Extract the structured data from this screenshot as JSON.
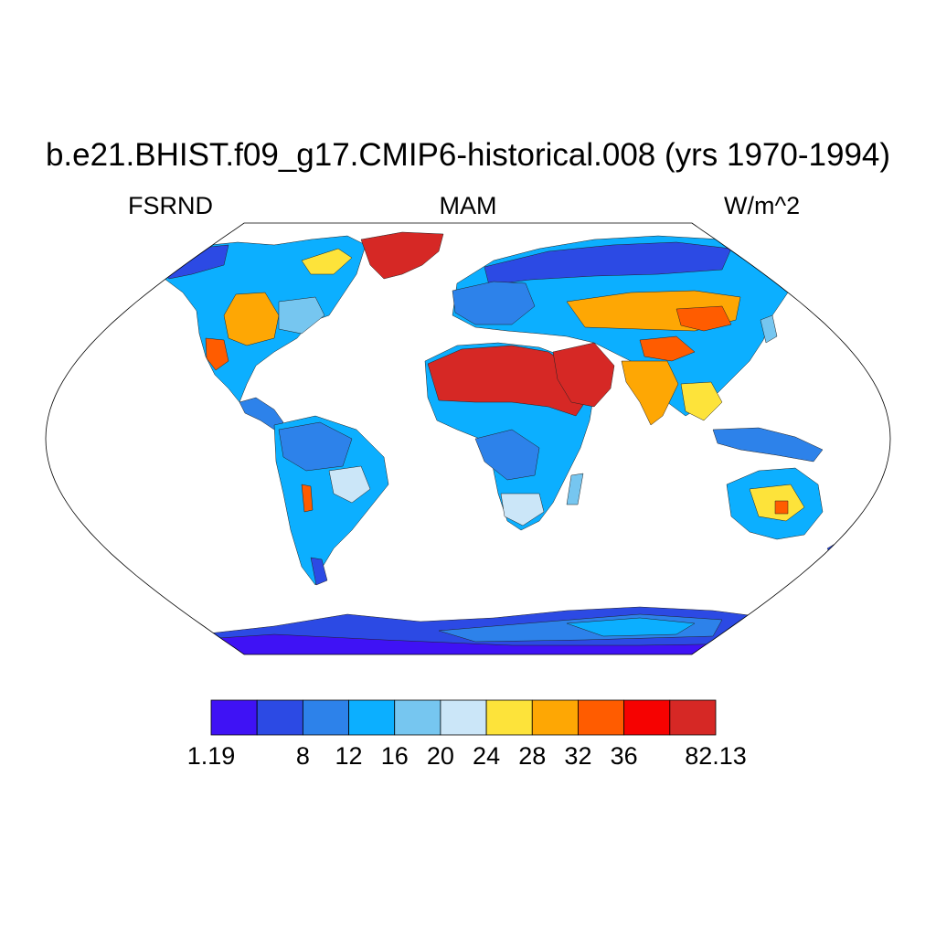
{
  "title": "b.e21.BHIST.f09_g17.CMIP6-historical.008 (yrs 1970-1994)",
  "left_label": "FSRND",
  "center_label": "MAM",
  "right_label": "W/m^2",
  "colorbar": {
    "colors": [
      "#3f12f5",
      "#2c4ae4",
      "#2d82ea",
      "#0cafff",
      "#76c6f0",
      "#cbe6f8",
      "#fde33a",
      "#fea704",
      "#ff5c00",
      "#f60201",
      "#d62825"
    ],
    "labels": [
      "1.19",
      "",
      "8",
      "12",
      "16",
      "20",
      "24",
      "28",
      "32",
      "36",
      "",
      "82.13"
    ]
  },
  "map": {
    "projection": "Robinson",
    "colors": {
      "ocean": "#ffffff",
      "very_low": "#3f12f5",
      "low": "#2c4ae4",
      "low_mid": "#2d82ea",
      "mid": "#0cafff",
      "mid_high": "#76c6f0",
      "pale": "#cbe6f8",
      "yellow": "#fde33a",
      "orange": "#fea704",
      "dark_orange": "#ff5c00",
      "red": "#f60201",
      "dark_red": "#d62825"
    }
  }
}
